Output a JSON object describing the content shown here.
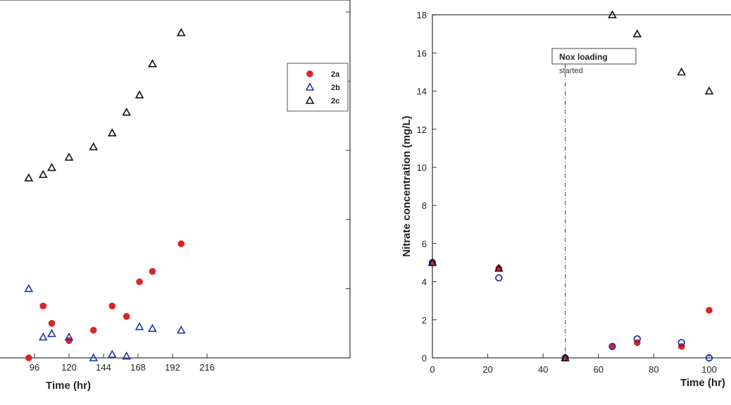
{
  "chart_data": [
    {
      "type": "scatter",
      "title": "",
      "xlabel": "Time (hr)",
      "ylabel": "",
      "xlim": [
        72,
        216
      ],
      "ylim": [
        0,
        10
      ],
      "xticks": [
        96,
        120,
        144,
        168,
        192,
        216
      ],
      "legend": {
        "position": "top-right",
        "entries": [
          "2a",
          "2b",
          "2c"
        ]
      },
      "series": [
        {
          "name": "2a",
          "color": "#dd2222",
          "marker": "filled-circle",
          "x": [
            92,
            102,
            108,
            120,
            137,
            150,
            160,
            169,
            178,
            198
          ],
          "y": [
            0,
            1.5,
            1.0,
            0.5,
            0.8,
            1.5,
            1.2,
            2.2,
            2.5,
            3.3
          ]
        },
        {
          "name": "2b",
          "color": "#2233aa",
          "marker": "open-triangle",
          "x": [
            92,
            102,
            108,
            120,
            137,
            150,
            160,
            169,
            178,
            198
          ],
          "y": [
            2.0,
            0.6,
            0.7,
            0.6,
            0.0,
            0.1,
            0.05,
            0.9,
            0.85,
            0.8
          ]
        },
        {
          "name": "2c",
          "color": "#111111",
          "marker": "open-triangle",
          "x": [
            92,
            102,
            108,
            120,
            137,
            150,
            160,
            169,
            178,
            198
          ],
          "y": [
            5.2,
            5.3,
            5.5,
            5.8,
            6.1,
            6.5,
            7.1,
            7.6,
            8.5,
            9.4
          ]
        }
      ]
    },
    {
      "type": "scatter",
      "title": "",
      "xlabel": "Time (hr)",
      "ylabel": "Nitrate concentration (mg/L)",
      "xlim": [
        0,
        100
      ],
      "ylim": [
        0,
        18
      ],
      "xticks": [
        0,
        20,
        40,
        60,
        80,
        100
      ],
      "yticks": [
        0,
        2,
        4,
        6,
        8,
        10,
        12,
        14,
        16,
        18
      ],
      "annotation": {
        "x": 48,
        "label": "Nox loading",
        "sublabel": "started"
      },
      "series": [
        {
          "color": "#dd2222",
          "marker": "filled-circle",
          "x": [
            0,
            24,
            48,
            65,
            74,
            90,
            100
          ],
          "y": [
            5.0,
            4.7,
            0.0,
            0.6,
            0.8,
            0.6,
            2.5
          ]
        },
        {
          "color": "#2233aa",
          "marker": "open-circle",
          "x": [
            0,
            24,
            48,
            65,
            74,
            90,
            100
          ],
          "y": [
            5.0,
            4.2,
            0.0,
            0.6,
            1.0,
            0.8,
            0.0
          ]
        },
        {
          "color": "#111111",
          "marker": "open-triangle",
          "x": [
            0,
            24,
            48,
            65,
            74,
            90,
            100
          ],
          "y": [
            5.0,
            4.7,
            0.0,
            18.0,
            17.0,
            15.0,
            14.0
          ]
        }
      ]
    }
  ]
}
